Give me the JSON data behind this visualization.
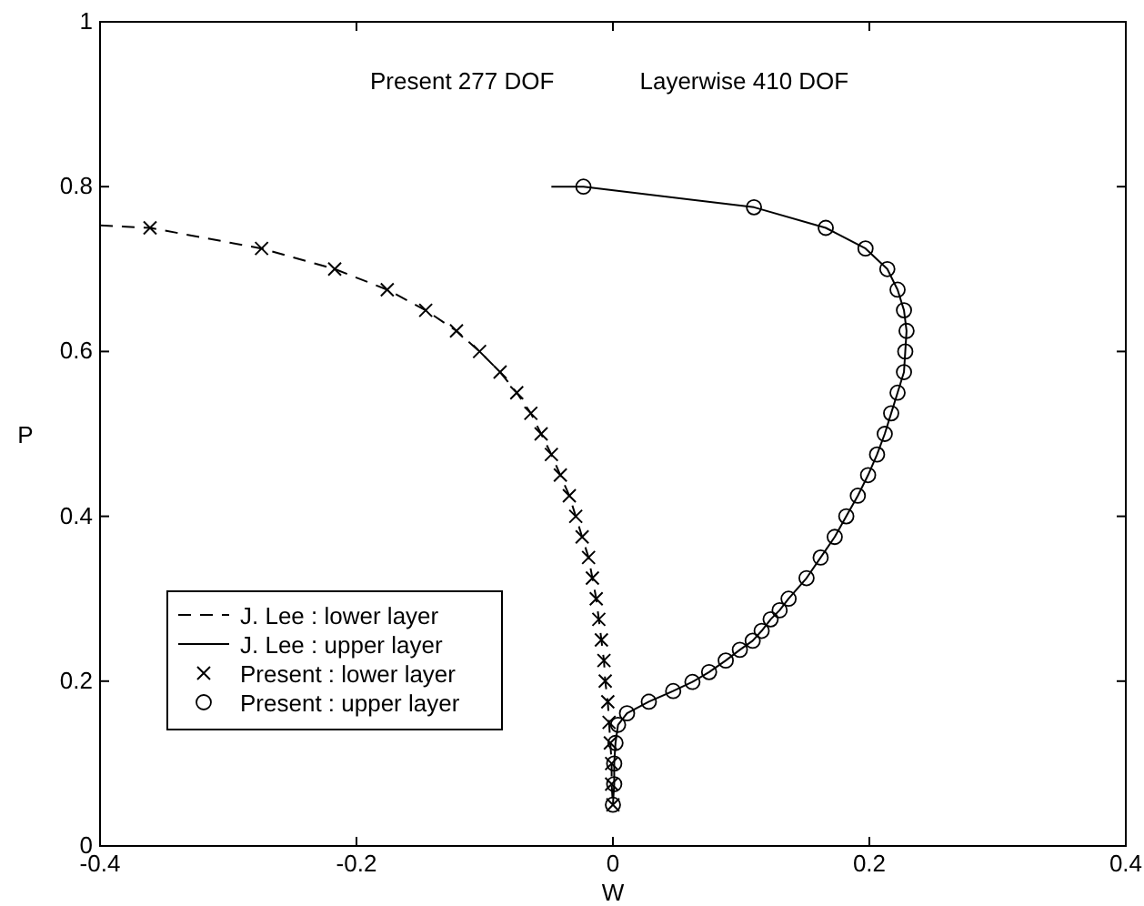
{
  "chart_data": {
    "type": "line",
    "xlabel": "W",
    "ylabel": "P",
    "xlim": [
      -0.4,
      0.4
    ],
    "ylim": [
      0,
      1
    ],
    "xticks": [
      -0.4,
      -0.2,
      0,
      0.2,
      0.4
    ],
    "yticks": [
      0,
      0.2,
      0.4,
      0.6,
      0.8,
      1
    ],
    "grid": false,
    "legend": "bottom left",
    "annotations": [
      "Present 277 DOF",
      "Layerwise 410 DOF"
    ],
    "series": [
      {
        "name": "J. Lee  : lower layer",
        "line_style": "dashed",
        "marker": "none",
        "color": "#000000",
        "x": [
          -0.4,
          -0.361,
          -0.274,
          -0.217,
          -0.176,
          -0.146,
          -0.122,
          -0.104,
          -0.088,
          -0.075,
          -0.064,
          -0.056,
          -0.048,
          -0.041,
          -0.034,
          -0.029,
          -0.024,
          -0.019,
          -0.016,
          -0.013,
          -0.011,
          -0.009,
          -0.007,
          -0.006,
          -0.004,
          -0.003,
          -0.002,
          -0.001,
          -0.001,
          0
        ],
        "values": [
          0.753,
          0.75,
          0.725,
          0.7,
          0.675,
          0.65,
          0.625,
          0.6,
          0.575,
          0.55,
          0.525,
          0.5,
          0.475,
          0.45,
          0.425,
          0.4,
          0.375,
          0.35,
          0.325,
          0.3,
          0.275,
          0.25,
          0.225,
          0.2,
          0.175,
          0.15,
          0.125,
          0.1,
          0.075,
          0.05
        ]
      },
      {
        "name": "J. Lee  : upper layer",
        "line_style": "solid",
        "marker": "none",
        "color": "#000000",
        "x": [
          -0.048,
          -0.023,
          0.11,
          0.166,
          0.197,
          0.214,
          0.222,
          0.227,
          0.229,
          0.228,
          0.227,
          0.222,
          0.217,
          0.212,
          0.206,
          0.199,
          0.191,
          0.182,
          0.173,
          0.162,
          0.151,
          0.137,
          0.13,
          0.123,
          0.116,
          0.109,
          0.099,
          0.088,
          0.075,
          0.062,
          0.047,
          0.028,
          0.011,
          0.004,
          0.002,
          0.001,
          0.001,
          0
        ],
        "values": [
          0.8,
          0.8,
          0.775,
          0.75,
          0.725,
          0.7,
          0.675,
          0.65,
          0.625,
          0.6,
          0.575,
          0.55,
          0.525,
          0.5,
          0.475,
          0.45,
          0.425,
          0.4,
          0.375,
          0.35,
          0.325,
          0.3,
          0.286,
          0.275,
          0.261,
          0.249,
          0.238,
          0.225,
          0.211,
          0.199,
          0.188,
          0.175,
          0.161,
          0.147,
          0.125,
          0.1,
          0.075,
          0.05
        ]
      },
      {
        "name": "Present : lower layer",
        "type": "scatter",
        "marker": "cross",
        "color": "#000000",
        "x": [
          -0.361,
          -0.274,
          -0.217,
          -0.176,
          -0.146,
          -0.122,
          -0.104,
          -0.088,
          -0.075,
          -0.064,
          -0.056,
          -0.048,
          -0.041,
          -0.034,
          -0.029,
          -0.024,
          -0.019,
          -0.016,
          -0.013,
          -0.011,
          -0.009,
          -0.007,
          -0.006,
          -0.004,
          -0.003,
          -0.002,
          -0.001,
          -0.001,
          0
        ],
        "values": [
          0.75,
          0.725,
          0.7,
          0.675,
          0.65,
          0.625,
          0.6,
          0.575,
          0.55,
          0.525,
          0.5,
          0.475,
          0.45,
          0.425,
          0.4,
          0.375,
          0.35,
          0.325,
          0.3,
          0.275,
          0.25,
          0.225,
          0.2,
          0.175,
          0.15,
          0.125,
          0.1,
          0.075,
          0.05
        ]
      },
      {
        "name": "Present : upper layer",
        "type": "scatter",
        "marker": "circle",
        "color": "#000000",
        "x": [
          -0.023,
          0.11,
          0.166,
          0.197,
          0.214,
          0.222,
          0.227,
          0.229,
          0.228,
          0.227,
          0.222,
          0.217,
          0.212,
          0.206,
          0.199,
          0.191,
          0.182,
          0.173,
          0.162,
          0.151,
          0.137,
          0.13,
          0.123,
          0.116,
          0.109,
          0.099,
          0.088,
          0.075,
          0.062,
          0.047,
          0.028,
          0.011,
          0.004,
          0.002,
          0.001,
          0.001,
          0
        ],
        "values": [
          0.8,
          0.775,
          0.75,
          0.725,
          0.7,
          0.675,
          0.65,
          0.625,
          0.6,
          0.575,
          0.55,
          0.525,
          0.5,
          0.475,
          0.45,
          0.425,
          0.4,
          0.375,
          0.35,
          0.325,
          0.3,
          0.286,
          0.275,
          0.261,
          0.249,
          0.238,
          0.225,
          0.211,
          0.199,
          0.188,
          0.175,
          0.161,
          0.147,
          0.125,
          0.1,
          0.075,
          0.05
        ]
      }
    ]
  }
}
